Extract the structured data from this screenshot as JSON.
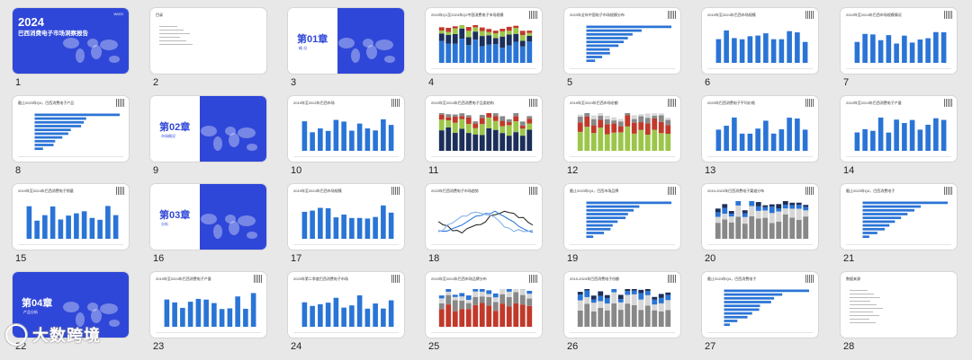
{
  "slides": [
    {
      "n": "1",
      "kind": "cover",
      "year": "2024",
      "title": "巴西消费电子市场洞察报告",
      "brand": "WIZO"
    },
    {
      "n": "2",
      "kind": "toc",
      "title": "目录"
    },
    {
      "n": "3",
      "kind": "chapter",
      "label": "第01章",
      "sub": "概 况"
    },
    {
      "n": "4",
      "kind": "stack",
      "title": "2019年Q1至2024年Q2中国消费电子市场规模"
    },
    {
      "n": "5",
      "kind": "hbar",
      "title": "2023年全年中国电子市场规模分布"
    },
    {
      "n": "6",
      "kind": "bar",
      "title": "2019年至2024年巴西市场规模"
    },
    {
      "n": "7",
      "kind": "bar",
      "title": "2019年至2024年巴西市场规模情况"
    },
    {
      "n": "8",
      "kind": "hbar",
      "title": "截止2023年Q4，巴西消费电子产品"
    },
    {
      "n": "9",
      "kind": "chapter",
      "label": "第02章",
      "sub": "市场概况"
    },
    {
      "n": "10",
      "kind": "bar",
      "title": "2019年至2022年巴西市场"
    },
    {
      "n": "11",
      "kind": "stack",
      "title": "2019年至2024年巴西消费电子品类结构"
    },
    {
      "n": "12",
      "kind": "stack",
      "title": "2019年至2024年巴西市场份额"
    },
    {
      "n": "13",
      "kind": "bar",
      "title": "2023年巴西消费电子平均价格"
    },
    {
      "n": "14",
      "kind": "bar",
      "title": "2019年至2024年巴西消费电子产量"
    },
    {
      "n": "15",
      "kind": "bar",
      "title": "2019年至2024年巴西消费电子销量"
    },
    {
      "n": "16",
      "kind": "chapter",
      "label": "第03章",
      "sub": "分析"
    },
    {
      "n": "17",
      "kind": "bar",
      "title": "2019年至2024年巴西市场规模"
    },
    {
      "n": "18",
      "kind": "line",
      "title": "2023年巴西消费电子市场趋势"
    },
    {
      "n": "19",
      "kind": "hbar",
      "title": "截止2023年Q4，巴西市场品牌"
    },
    {
      "n": "20",
      "kind": "stack",
      "title": "2019-2023年巴西消费电子渠道分布"
    },
    {
      "n": "21",
      "kind": "hbar",
      "title": "截止2023年Q4，巴西消费电子"
    },
    {
      "n": "22",
      "kind": "chapter",
      "label": "第04章",
      "sub": "产品分析"
    },
    {
      "n": "23",
      "kind": "bar",
      "title": "2019年至2024年巴西消费电子产量"
    },
    {
      "n": "24",
      "kind": "bar",
      "title": "2023年第二季度巴西消费电子市场"
    },
    {
      "n": "25",
      "kind": "stack",
      "title": "2019年至2024年巴西市场品牌分布"
    },
    {
      "n": "26",
      "kind": "stack",
      "title": "2019-2024年巴西消费电子份额"
    },
    {
      "n": "27",
      "kind": "hbar",
      "title": "截止2023年Q4，巴西消费电子"
    },
    {
      "n": "28",
      "kind": "text",
      "title": "数据来源"
    }
  ],
  "watermark": {
    "text": "大数跨境"
  },
  "colors": {
    "accent": "#2f47d8",
    "bar": "#2a74d6"
  }
}
